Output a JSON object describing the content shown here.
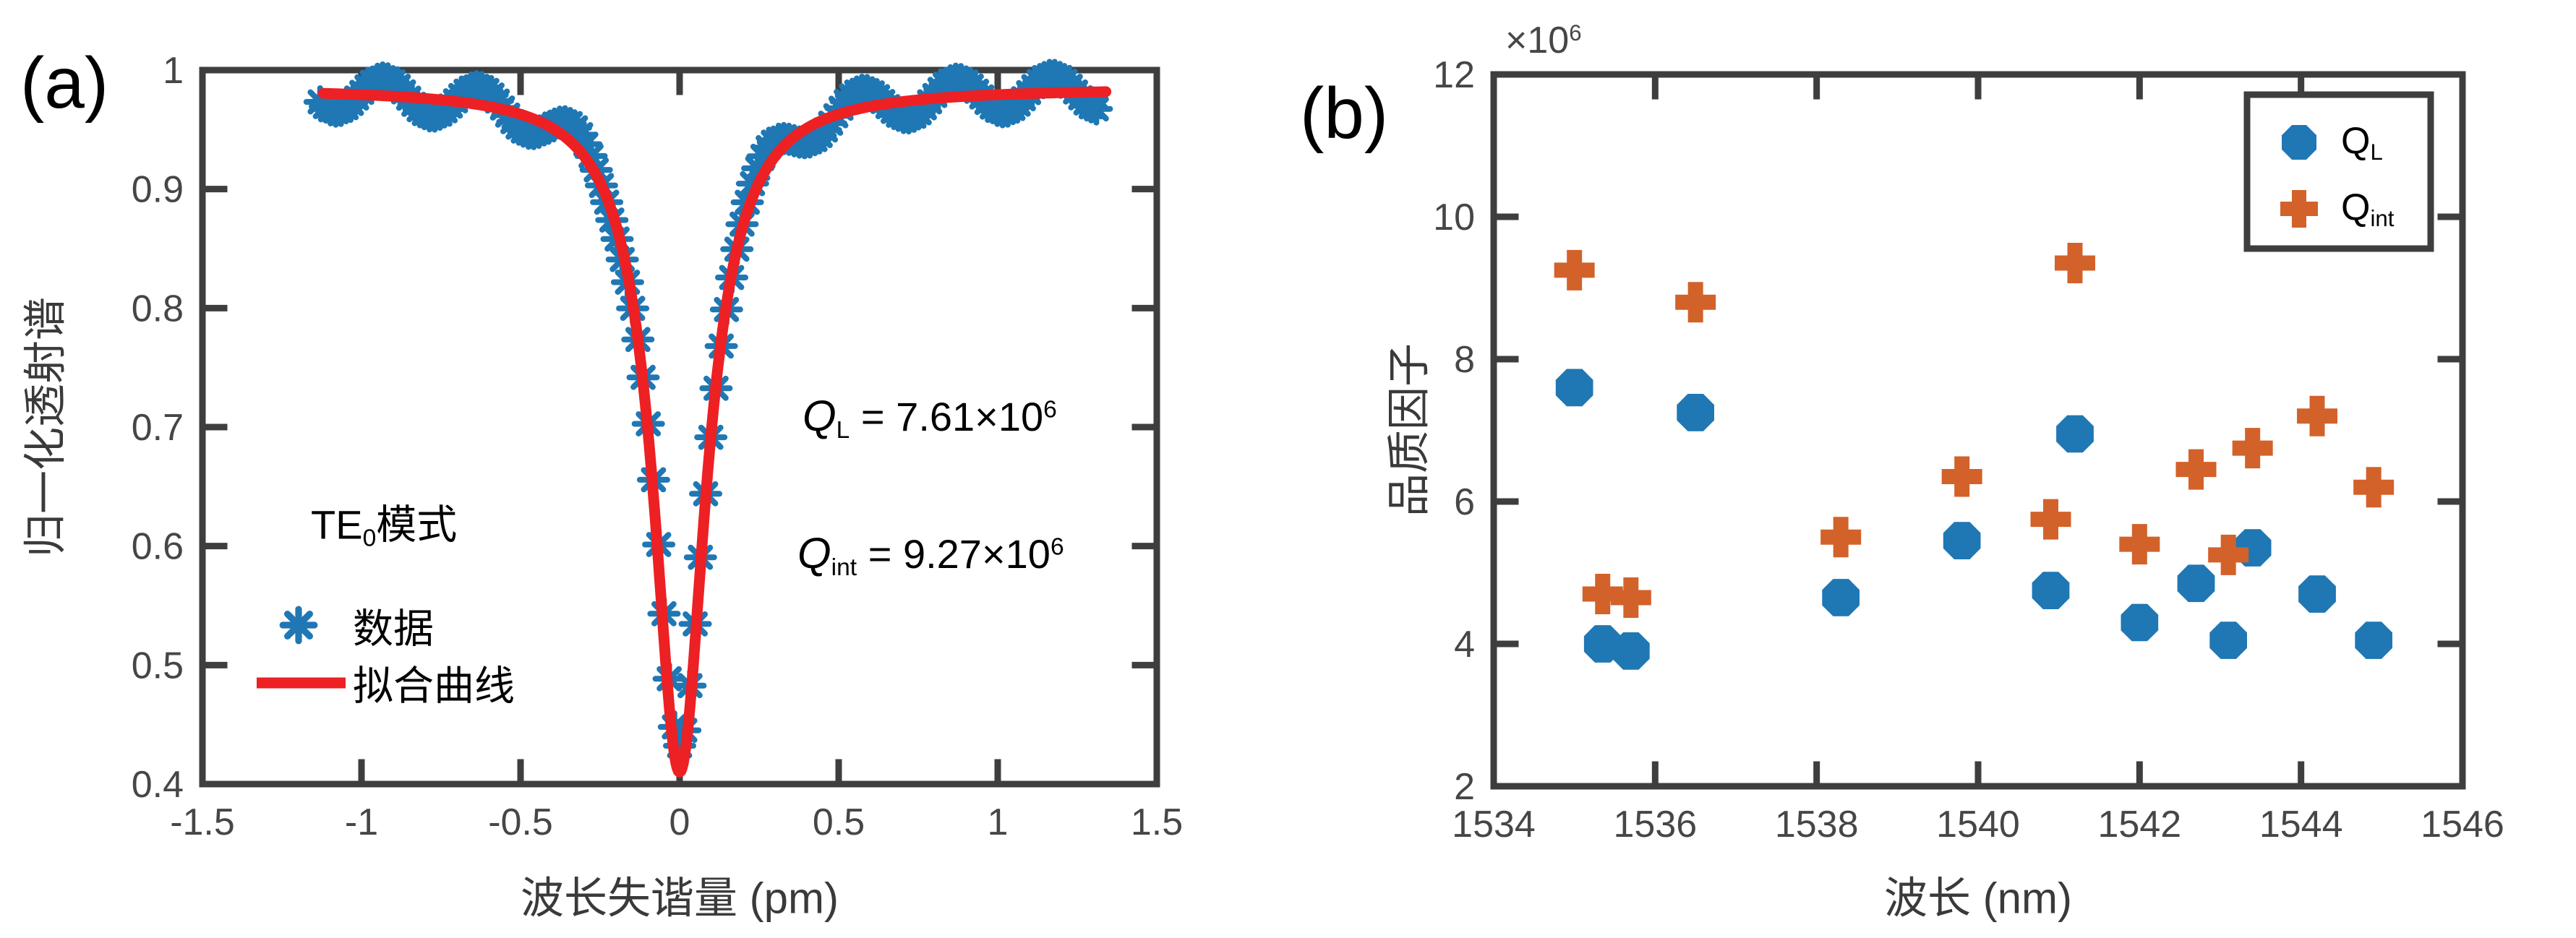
{
  "colors": {
    "axis": "#3e3e3e",
    "tick_label": "#464646",
    "data_blue": "#1f77b4",
    "marker_orange": "#d2622a",
    "fit_red": "#ed2024",
    "background": "#ffffff"
  },
  "panel_a": {
    "label": "(a)",
    "xlabel": "波长失谐量 (pm)",
    "ylabel": "归一化透射谱",
    "xtick_labels": [
      "-1.5",
      "-1",
      "-0.5",
      "0",
      "0.5",
      "1",
      "1.5"
    ],
    "xtick_values": [
      -1.5,
      -1,
      -0.5,
      0,
      0.5,
      1,
      1.5
    ],
    "ytick_labels": [
      "0.4",
      "0.5",
      "0.6",
      "0.7",
      "0.8",
      "0.9",
      "1"
    ],
    "ytick_values": [
      0.4,
      0.5,
      0.6,
      0.7,
      0.8,
      0.9,
      1
    ],
    "mode_annotation": {
      "base": "TE",
      "sub": "0",
      "rest": "模式"
    },
    "q_annotations": [
      {
        "base": "Q",
        "sub": "L",
        "eq": " = 7.61×10",
        "exp": "6"
      },
      {
        "base": "Q",
        "sub": "int",
        "eq": " = 9.27×10",
        "exp": "6"
      }
    ],
    "legend": [
      {
        "label": "数据",
        "marker": "asterisk"
      },
      {
        "label": "拟合曲线",
        "marker": "line"
      }
    ]
  },
  "panel_b": {
    "label": "(b)",
    "xlabel": "波长 (nm)",
    "ylabel": "品质因子",
    "multiplier": {
      "base": "×10",
      "exp": "6"
    },
    "xtick_labels": [
      "1534",
      "1536",
      "1538",
      "1540",
      "1542",
      "1544",
      "1546"
    ],
    "xtick_values": [
      1534,
      1536,
      1538,
      1540,
      1542,
      1544,
      1546
    ],
    "ytick_labels": [
      "2",
      "4",
      "6",
      "8",
      "10",
      "12"
    ],
    "ytick_values": [
      2,
      4,
      6,
      8,
      10,
      12
    ],
    "legend": [
      {
        "base": "Q",
        "sub": "L",
        "marker": "octagon",
        "color": "#1f77b4"
      },
      {
        "base": "Q",
        "sub": "int",
        "marker": "plus",
        "color": "#d2622a"
      }
    ]
  },
  "chart_data": [
    {
      "type": "scatter",
      "title": "TE0 mode normalized transmission spectrum",
      "xlabel": "波长失谐量 (pm)",
      "ylabel": "归一化透射谱",
      "xlim": [
        -1.5,
        1.5
      ],
      "ylim": [
        0.4,
        1.0
      ],
      "grid": false,
      "legend_position": "lower-left",
      "annotations": [
        "TE₀模式",
        "Q_L = 7.61×10⁶",
        "Q_int = 9.27×10⁶"
      ],
      "series": [
        {
          "name": "数据",
          "marker": "asterisk",
          "color": "#1f77b4",
          "model": {
            "kind": "lorentzian_dip_with_fringe_ripple",
            "x_start": -1.13,
            "x_end": 1.31,
            "n_points": 150,
            "baseline": 0.985,
            "dip_min": 0.427,
            "center": 0.0,
            "fwhm_pm": 0.2,
            "ripple_amplitude": 0.015,
            "ripple_period_pm": 0.3,
            "ripple_peak_at": -0.93
          }
        },
        {
          "name": "拟合曲线",
          "marker": "line",
          "color": "#ed2024",
          "model": {
            "kind": "lorentzian_dip",
            "x_start": -1.12,
            "x_end": 1.34,
            "baseline": 0.985,
            "dip_min": 0.41,
            "center": 0.0,
            "fwhm_pm": 0.2
          }
        }
      ]
    },
    {
      "type": "scatter",
      "title": "Quality factors vs wavelength",
      "xlabel": "波长 (nm)",
      "ylabel": "品质因子",
      "xlim": [
        1534,
        1546
      ],
      "ylim": [
        2,
        12
      ],
      "y_unit_multiplier": "×10⁶",
      "grid": false,
      "legend_position": "upper-right",
      "x": [
        1535.0,
        1535.35,
        1535.7,
        1536.5,
        1538.3,
        1539.8,
        1540.9,
        1541.2,
        1542.0,
        1542.7,
        1543.1,
        1543.4,
        1544.2,
        1544.9
      ],
      "series": [
        {
          "name": "Q_L",
          "marker": "octagon",
          "color": "#1f77b4",
          "values": [
            7.6,
            4.0,
            3.9,
            7.25,
            4.65,
            5.45,
            4.75,
            6.95,
            4.3,
            4.85,
            4.05,
            5.35,
            4.7,
            4.05
          ]
        },
        {
          "name": "Q_int",
          "marker": "plus",
          "color": "#d2622a",
          "values": [
            9.25,
            4.7,
            4.65,
            8.8,
            5.5,
            6.35,
            5.75,
            9.35,
            5.4,
            6.45,
            5.25,
            6.75,
            7.2,
            6.2
          ]
        }
      ]
    }
  ]
}
